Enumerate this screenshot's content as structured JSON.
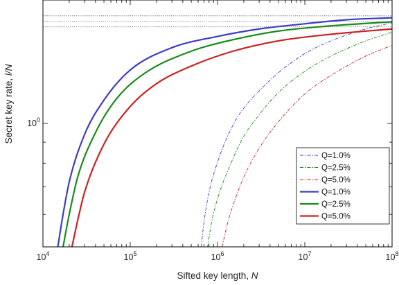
{
  "chart_data": {
    "type": "line",
    "title": "",
    "xlabel": "Sifted key length, ",
    "xlabel_var": "N",
    "ylabel": "Secret key rate, ",
    "ylabel_var": "l/N",
    "x_scale": "log",
    "y_scale": "log",
    "xlim": [
      10000,
      100000000
    ],
    "ylim": [
      0.5,
      2.0
    ],
    "x_ticks": [
      {
        "value": 10000,
        "base": "10",
        "exp": "4"
      },
      {
        "value": 100000,
        "base": "10",
        "exp": "5"
      },
      {
        "value": 1000000,
        "base": "10",
        "exp": "6"
      },
      {
        "value": 10000000,
        "base": "10",
        "exp": "7"
      },
      {
        "value": 100000000,
        "base": "10",
        "exp": "8"
      }
    ],
    "y_ticks": [
      {
        "value": 1,
        "base": "10",
        "exp": "0"
      }
    ],
    "asymptotes": [
      1.83,
      1.77,
      1.72
    ],
    "legend_position": "bottom-right",
    "series": [
      {
        "name": "Q=1.0%",
        "color": "#3b3bc8",
        "style": "dashdot",
        "points": [
          [
            650000,
            0.5
          ],
          [
            700000,
            0.575
          ],
          [
            800000,
            0.68
          ],
          [
            1000000,
            0.805
          ],
          [
            1500000,
            0.99
          ],
          [
            2000000,
            1.09
          ],
          [
            3000000,
            1.2
          ],
          [
            5000000,
            1.33
          ],
          [
            10000000,
            1.48
          ],
          [
            20000000,
            1.59
          ],
          [
            50000000,
            1.7
          ],
          [
            100000000,
            1.76
          ]
        ]
      },
      {
        "name": "Q=2.5%",
        "color": "#1a8a1a",
        "style": "dashdot",
        "points": [
          [
            770000,
            0.5
          ],
          [
            850000,
            0.57
          ],
          [
            1000000,
            0.655
          ],
          [
            1500000,
            0.82
          ],
          [
            2000000,
            0.93
          ],
          [
            3000000,
            1.05
          ],
          [
            5000000,
            1.19
          ],
          [
            10000000,
            1.34
          ],
          [
            20000000,
            1.46
          ],
          [
            50000000,
            1.59
          ],
          [
            100000000,
            1.67
          ]
        ]
      },
      {
        "name": "Q=5.0%",
        "color": "#cc2020",
        "style": "dashdot",
        "points": [
          [
            1130000,
            0.5
          ],
          [
            1300000,
            0.57
          ],
          [
            1500000,
            0.63
          ],
          [
            2000000,
            0.74
          ],
          [
            3000000,
            0.87
          ],
          [
            5000000,
            1.01
          ],
          [
            10000000,
            1.18
          ],
          [
            20000000,
            1.31
          ],
          [
            50000000,
            1.46
          ],
          [
            100000000,
            1.55
          ]
        ]
      },
      {
        "name": "Q=1.0%",
        "color": "#3b3bc8",
        "style": "solid",
        "points": [
          [
            14800,
            0.5
          ],
          [
            17000,
            0.6
          ],
          [
            20000,
            0.72
          ],
          [
            30000,
            0.94
          ],
          [
            50000,
            1.14
          ],
          [
            100000,
            1.35
          ],
          [
            300000,
            1.53
          ],
          [
            1000000,
            1.63
          ],
          [
            3000000,
            1.7
          ],
          [
            10000000,
            1.75
          ],
          [
            30000000,
            1.79
          ],
          [
            100000000,
            1.81
          ]
        ]
      },
      {
        "name": "Q=2.5%",
        "color": "#1a8a1a",
        "style": "solid",
        "points": [
          [
            17000,
            0.5
          ],
          [
            20000,
            0.6
          ],
          [
            25000,
            0.74
          ],
          [
            40000,
            0.95
          ],
          [
            70000,
            1.15
          ],
          [
            150000,
            1.33
          ],
          [
            500000,
            1.5
          ],
          [
            1500000,
            1.6
          ],
          [
            5000000,
            1.68
          ],
          [
            20000000,
            1.73
          ],
          [
            100000000,
            1.77
          ]
        ]
      },
      {
        "name": "Q=5.0%",
        "color": "#cc2020",
        "style": "solid",
        "points": [
          [
            21500,
            0.5
          ],
          [
            25000,
            0.58
          ],
          [
            30000,
            0.68
          ],
          [
            50000,
            0.89
          ],
          [
            100000,
            1.1
          ],
          [
            200000,
            1.25
          ],
          [
            500000,
            1.38
          ],
          [
            1500000,
            1.5
          ],
          [
            5000000,
            1.59
          ],
          [
            20000000,
            1.65
          ],
          [
            100000000,
            1.7
          ]
        ]
      }
    ]
  }
}
